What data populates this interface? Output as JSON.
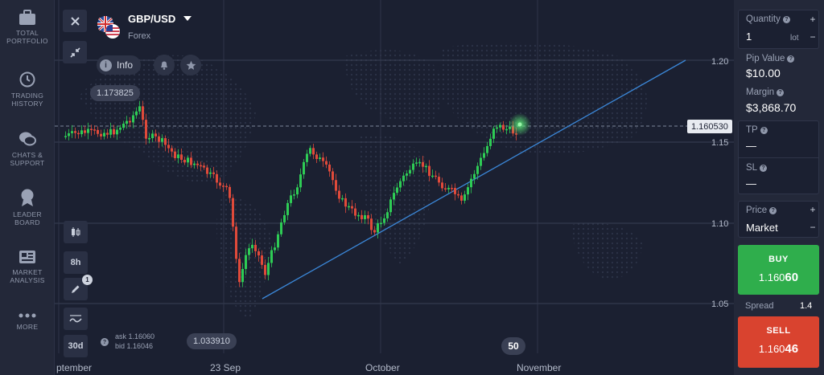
{
  "sidebar": {
    "items": [
      {
        "label_1": "TOTAL",
        "label_2": "PORTFOLIO",
        "icon": "briefcase-icon"
      },
      {
        "label_1": "TRADING",
        "label_2": "HISTORY",
        "icon": "history-icon"
      },
      {
        "label_1": "CHATS &",
        "label_2": "SUPPORT",
        "icon": "chat-icon"
      },
      {
        "label_1": "LEADER",
        "label_2": "BOARD",
        "icon": "medal-icon"
      },
      {
        "label_1": "MARKET",
        "label_2": "ANALYSIS",
        "icon": "newspaper-icon"
      },
      {
        "label_1": "MORE",
        "label_2": "",
        "icon": "more-icon"
      }
    ]
  },
  "asset": {
    "name": "GBP/USD",
    "category": "Forex",
    "flag_icon": "gb-us-flag-icon"
  },
  "toolbar": {
    "info_label": "Info",
    "timeframe": "8h",
    "period": "30d",
    "drawings_count": "1"
  },
  "chart": {
    "high_label": "1.173825",
    "low_label": "1.033910",
    "current_price": "1.160530",
    "y_ticks": [
      "1.20",
      "1.15",
      "1.10",
      "1.05"
    ],
    "x_ticks": [
      "ptember",
      "23 Sep",
      "October",
      "November"
    ],
    "ask": "ask 1.16060",
    "bid": "bid 1.16046",
    "zoom_badge": "50",
    "colors": {
      "up": "#2ecc55",
      "down": "#e04a3a",
      "trendline": "#3b87d8"
    }
  },
  "panel": {
    "quantity_label": "Quantity",
    "quantity_value": "1",
    "quantity_unit": "lot",
    "pip_label": "Pip Value",
    "pip_value": "$10.00",
    "margin_label": "Margin",
    "margin_value": "$3,868.70",
    "tp_label": "TP",
    "tp_value": "—",
    "sl_label": "SL",
    "sl_value": "—",
    "price_label": "Price",
    "price_value": "Market",
    "buy_label": "BUY",
    "buy_price_main": "1.160",
    "buy_price_big": "60",
    "spread_label": "Spread",
    "spread_value": "1.4",
    "sell_label": "SELL",
    "sell_price_main": "1.160",
    "sell_price_big": "46",
    "plus": "+",
    "minus": "−"
  }
}
